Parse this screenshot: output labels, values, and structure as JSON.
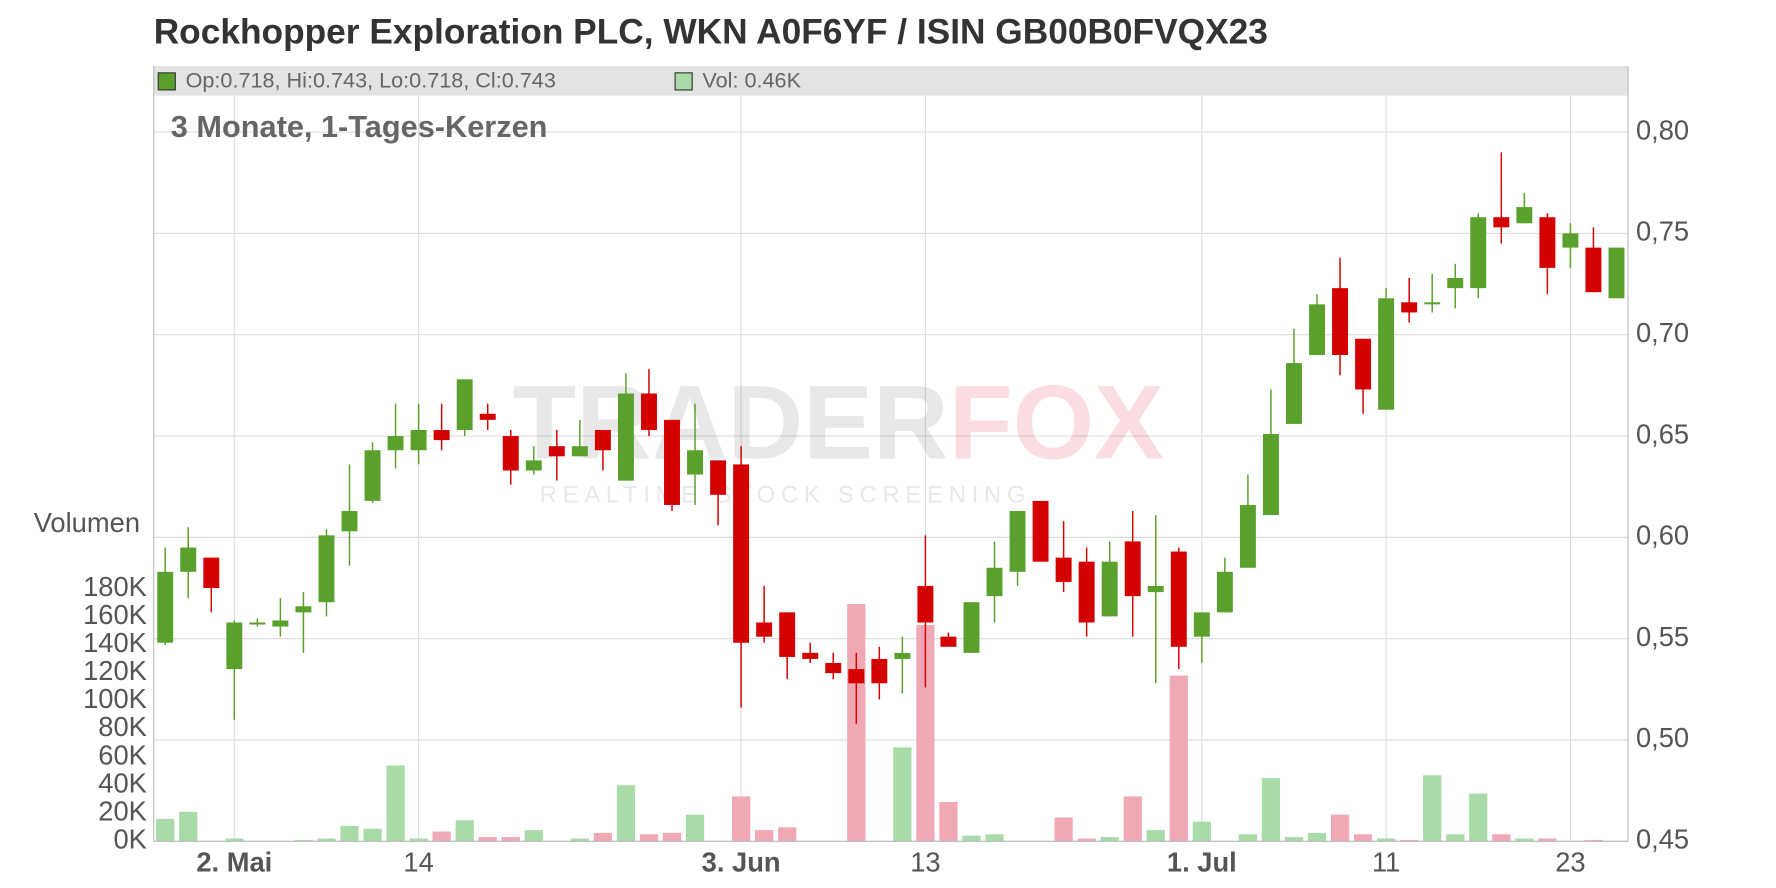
{
  "chart_data": {
    "type": "candlestick",
    "title": "Rockhopper Exploration PLC, WKN A0F6YF / ISIN GB00B0FVQX23",
    "subtitle": "3 Monate, 1-Tages-Kerzen",
    "legend": {
      "ohlc": "Op:0.718, Hi:0.743, Lo:0.718, Cl:0.743",
      "volume": "Vol: 0.46K"
    },
    "y2_label": "Volumen",
    "watermark": {
      "brand": "TRADER",
      "brand_accent": "FOX",
      "tagline": "REALTIME STOCK SCREENING"
    },
    "categories": [
      null,
      null,
      null,
      "2. Mai",
      null,
      null,
      null,
      null,
      null,
      null,
      null,
      "14",
      null,
      null,
      null,
      null,
      null,
      null,
      null,
      null,
      null,
      null,
      null,
      null,
      null,
      "3. Jun",
      null,
      null,
      null,
      null,
      null,
      null,
      null,
      "13",
      null,
      null,
      null,
      null,
      null,
      null,
      null,
      null,
      null,
      null,
      null,
      "1. Jul",
      null,
      null,
      null,
      null,
      null,
      null,
      null,
      "11",
      null,
      null,
      null,
      null,
      null,
      null,
      null,
      "23",
      null,
      null
    ],
    "open": [
      0.548,
      0.583,
      0.59,
      0.535,
      0.557,
      0.556,
      0.563,
      0.568,
      0.603,
      0.618,
      0.643,
      0.643,
      0.653,
      0.653,
      0.661,
      0.65,
      0.633,
      0.645,
      0.64,
      0.653,
      0.628,
      0.671,
      0.658,
      0.631,
      0.638,
      0.636,
      0.558,
      0.563,
      0.543,
      0.538,
      0.535,
      0.54,
      0.54,
      0.576,
      0.551,
      0.543,
      0.571,
      0.583,
      0.618,
      0.59,
      0.588,
      0.561,
      0.598,
      0.573,
      0.593,
      0.551,
      0.563,
      0.585,
      0.611,
      0.656,
      0.69,
      0.723,
      0.698,
      0.663,
      0.716,
      0.715,
      0.723,
      0.723,
      0.758,
      0.755,
      0.758,
      0.743,
      0.743,
      0.718
    ],
    "high": [
      0.595,
      0.605,
      0.59,
      0.559,
      0.56,
      0.57,
      0.573,
      0.604,
      0.636,
      0.647,
      0.666,
      0.666,
      0.666,
      0.678,
      0.666,
      0.653,
      0.645,
      0.653,
      0.658,
      0.653,
      0.681,
      0.683,
      0.658,
      0.666,
      0.638,
      0.645,
      0.576,
      0.563,
      0.548,
      0.543,
      0.543,
      0.546,
      0.551,
      0.601,
      0.553,
      0.568,
      0.598,
      0.613,
      0.618,
      0.608,
      0.595,
      0.598,
      0.613,
      0.611,
      0.595,
      0.563,
      0.59,
      0.631,
      0.673,
      0.703,
      0.72,
      0.738,
      0.698,
      0.723,
      0.728,
      0.73,
      0.735,
      0.76,
      0.79,
      0.77,
      0.76,
      0.755,
      0.753,
      0.743
    ],
    "low": [
      0.547,
      0.57,
      0.563,
      0.51,
      0.556,
      0.551,
      0.543,
      0.561,
      0.586,
      0.617,
      0.634,
      0.636,
      0.643,
      0.65,
      0.653,
      0.626,
      0.631,
      0.628,
      0.64,
      0.633,
      0.628,
      0.65,
      0.613,
      0.616,
      0.606,
      0.516,
      0.548,
      0.53,
      0.538,
      0.53,
      0.508,
      0.52,
      0.523,
      0.526,
      0.546,
      0.543,
      0.558,
      0.576,
      0.588,
      0.573,
      0.551,
      0.561,
      0.551,
      0.528,
      0.535,
      0.538,
      0.563,
      0.585,
      0.611,
      0.656,
      0.69,
      0.68,
      0.661,
      0.663,
      0.706,
      0.711,
      0.713,
      0.718,
      0.745,
      0.755,
      0.72,
      0.733,
      0.721,
      0.718
    ],
    "close": [
      0.583,
      0.595,
      0.575,
      0.558,
      0.558,
      0.559,
      0.566,
      0.601,
      0.613,
      0.643,
      0.65,
      0.653,
      0.648,
      0.678,
      0.658,
      0.633,
      0.638,
      0.64,
      0.645,
      0.643,
      0.671,
      0.653,
      0.616,
      0.643,
      0.621,
      0.548,
      0.551,
      0.541,
      0.54,
      0.533,
      0.528,
      0.528,
      0.543,
      0.558,
      0.546,
      0.568,
      0.585,
      0.613,
      0.588,
      0.578,
      0.558,
      0.588,
      0.571,
      0.576,
      0.546,
      0.563,
      0.583,
      0.616,
      0.651,
      0.686,
      0.715,
      0.69,
      0.673,
      0.718,
      0.711,
      0.716,
      0.728,
      0.758,
      0.753,
      0.763,
      0.733,
      0.75,
      0.721,
      0.743
    ],
    "volume": [
      16000,
      21000,
      0,
      2000,
      0,
      0,
      1000,
      2000,
      11000,
      9000,
      54000,
      2000,
      7000,
      15000,
      3000,
      3000,
      8000,
      0,
      2000,
      6000,
      40000,
      5000,
      6000,
      19000,
      0,
      32000,
      8000,
      10000,
      0,
      0,
      169000,
      0,
      67000,
      154000,
      28000,
      4000,
      5000,
      0,
      0,
      17000,
      2000,
      3000,
      32000,
      8000,
      118000,
      14000,
      0,
      5000,
      45000,
      3000,
      6000,
      19000,
      5000,
      2000,
      1000,
      47000,
      5000,
      34000,
      5000,
      2000,
      2000,
      0,
      1000,
      460
    ],
    "colors": {
      "up": "#5aa02c",
      "down": "#d40000",
      "volume_up": "#a8dba8",
      "volume_down": "#f0a8b4"
    },
    "ylim": [
      0.45,
      0.818
    ],
    "yticks": [
      {
        "value": 0.45,
        "label": "0,45"
      },
      {
        "value": 0.5,
        "label": "0,50"
      },
      {
        "value": 0.55,
        "label": "0,55"
      },
      {
        "value": 0.6,
        "label": "0,60"
      },
      {
        "value": 0.65,
        "label": "0,65"
      },
      {
        "value": 0.7,
        "label": "0,70"
      },
      {
        "value": 0.75,
        "label": "0,75"
      },
      {
        "value": 0.8,
        "label": "0,80"
      }
    ],
    "y2lim": [
      0,
      531000
    ],
    "y2ticks": [
      {
        "value": 0,
        "label": "0K"
      },
      {
        "value": 20000,
        "label": "20K"
      },
      {
        "value": 40000,
        "label": "40K"
      },
      {
        "value": 60000,
        "label": "60K"
      },
      {
        "value": 80000,
        "label": "80K"
      },
      {
        "value": 100000,
        "label": "100K"
      },
      {
        "value": 120000,
        "label": "120K"
      },
      {
        "value": 140000,
        "label": "140K"
      },
      {
        "value": 160000,
        "label": "160K"
      },
      {
        "value": 180000,
        "label": "180K"
      }
    ],
    "grid": true
  }
}
